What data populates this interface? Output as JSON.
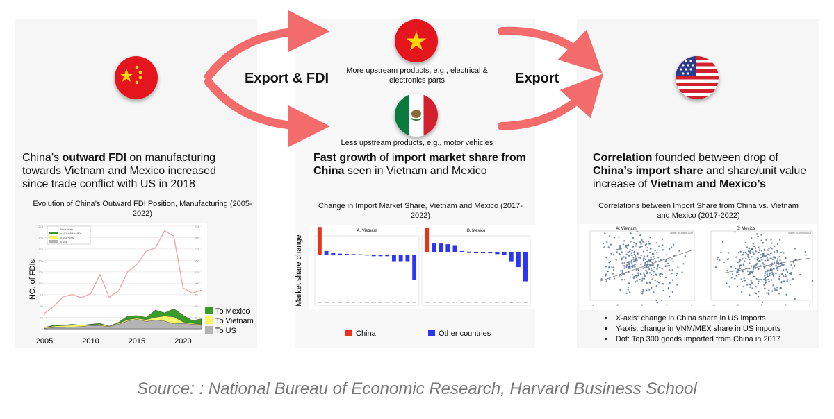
{
  "labels": {
    "export_fdi": "Export & FDI",
    "export": "Export"
  },
  "colors": {
    "arrow": "#f46b6b",
    "china_bar": "#e8321a",
    "other_bar": "#2b35f5",
    "mexico": "#3a9a2a",
    "vietnam": "#f7f56a",
    "us": "#b4b4b4",
    "all": "#f4a0a0",
    "scatter": "#3c5a86"
  },
  "flags": [
    "china-flag",
    "vietnam-flag",
    "mexico-flag",
    "us-flag"
  ],
  "vietnam_note": "More upstream products, e.g., electrical & electronics parts",
  "mexico_note": "Less upstream products, e.g., motor vehicles",
  "panel1": {
    "pre": "China’s ",
    "bold": "outward FDI",
    "post": " on manufacturing towards Vietnam and Mexico increased since trade conflict with US in 2018",
    "chart_title": "Evolution of China’s Outward FDI Position, Manufacturing (2005-2022)"
  },
  "panel2": {
    "bold1": "Fast growth",
    "mid": " of i",
    "bold2": "mport market share from China",
    "post": " seen in Vietnam and Mexico",
    "chart_title": "Change in Import Market Share, Vietnam and Mexico (2017-2022)"
  },
  "panel3": {
    "bold1": "Correlation",
    "mid1": " founded between drop of ",
    "bold2": "China’s import share",
    "mid2": " and share/unit value increase of ",
    "bold3": "Vietnam and Mexico’s",
    "chart_title": "Correlations between Import Share from China vs. Vietnam and Mexico (2017-2022)",
    "bullets": [
      "X-axis: change in China share in US imports",
      "Y-axis: change in VNM/MEX share in US imports",
      "Dot: Top 300 goods imported from China in 2017"
    ]
  },
  "source": "Source: : National Bureau of Economic Research, Harvard Business School",
  "chart_data": [
    {
      "type": "area",
      "title": "Evolution of China’s Outward FDI Position, Manufacturing (2005-2022)",
      "ylabel": "NO. of FDIs",
      "ylim": [
        0,
        225
      ],
      "x": [
        2005,
        2006,
        2007,
        2008,
        2009,
        2010,
        2011,
        2012,
        2013,
        2014,
        2015,
        2016,
        2017,
        2018,
        2019,
        2020,
        2021,
        2022
      ],
      "xticks": [
        "2005",
        "2010",
        "2015",
        "2020"
      ],
      "inner_legend": [
        "All countries",
        "to USA+VNM+MEX",
        "to USA+VNM",
        "to USA"
      ],
      "series": [
        {
          "name": "All countries",
          "values": [
            34,
            49,
            70,
            75,
            68,
            77,
            119,
            69,
            83,
            125,
            141,
            170,
            177,
            215,
            203,
            90,
            78,
            85
          ]
        },
        {
          "name": "To Mexico",
          "values": [
            3,
            8,
            8,
            10,
            8,
            10,
            12,
            6,
            14,
            28,
            29,
            25,
            41,
            35,
            44,
            30,
            18,
            22
          ]
        },
        {
          "name": "To Vietnam",
          "values": [
            3,
            6,
            7,
            8,
            8,
            9,
            10,
            6,
            12,
            20,
            23,
            20,
            25,
            28,
            26,
            15,
            12,
            10
          ]
        },
        {
          "name": "To US",
          "values": [
            1,
            3,
            3,
            4,
            5,
            7,
            7,
            5,
            10,
            17,
            21,
            16,
            19,
            17,
            11,
            12,
            10,
            9
          ]
        }
      ]
    },
    {
      "type": "bar",
      "title": "A.  Vietnam",
      "ylabel": "Market share change",
      "legend": [
        "China",
        "Other countries"
      ],
      "categories": [
        "CHN",
        "AUS",
        "IDN",
        "BRA",
        "TWN",
        "IND",
        "USA",
        "ARG",
        "HKG",
        "DEU",
        "MYS",
        "JPN",
        "SGP",
        "THA",
        "KOR"
      ],
      "values": [
        12,
        1.8,
        1.1,
        0.7,
        0.6,
        0.5,
        0.4,
        0.2,
        -0.4,
        -0.4,
        -0.4,
        -2.5,
        -2.5,
        -2.5,
        -10.5
      ]
    },
    {
      "type": "bar",
      "title": "B. Mexico",
      "categories": [
        "CHN",
        "TWN",
        "BRA",
        "VNM",
        "MYS",
        "IND",
        "KOR",
        "THA",
        "CAN",
        "ITA",
        "FRA",
        "ESP",
        "DEU",
        "JPN",
        "USA"
      ],
      "values": [
        10,
        3.5,
        3.5,
        3.2,
        2.8,
        0.3,
        0.1,
        -0.3,
        -0.5,
        -0.6,
        -1,
        -1.2,
        -4,
        -6.5,
        -12.5
      ]
    },
    {
      "type": "scatter",
      "title": "A: Vietnam",
      "annotation": "Slope: -0.198 (0.025)",
      "xlim": [
        -4,
        4
      ],
      "xticks": [
        "-4",
        "-2",
        "0",
        "2",
        "4"
      ]
    },
    {
      "type": "scatter",
      "title": "B: Mexico",
      "annotation": "Slope: -0.090 (0.022)",
      "xlim": [
        -4,
        4
      ],
      "xticks": [
        "-4",
        "-2",
        "0",
        "2",
        "4"
      ]
    }
  ]
}
